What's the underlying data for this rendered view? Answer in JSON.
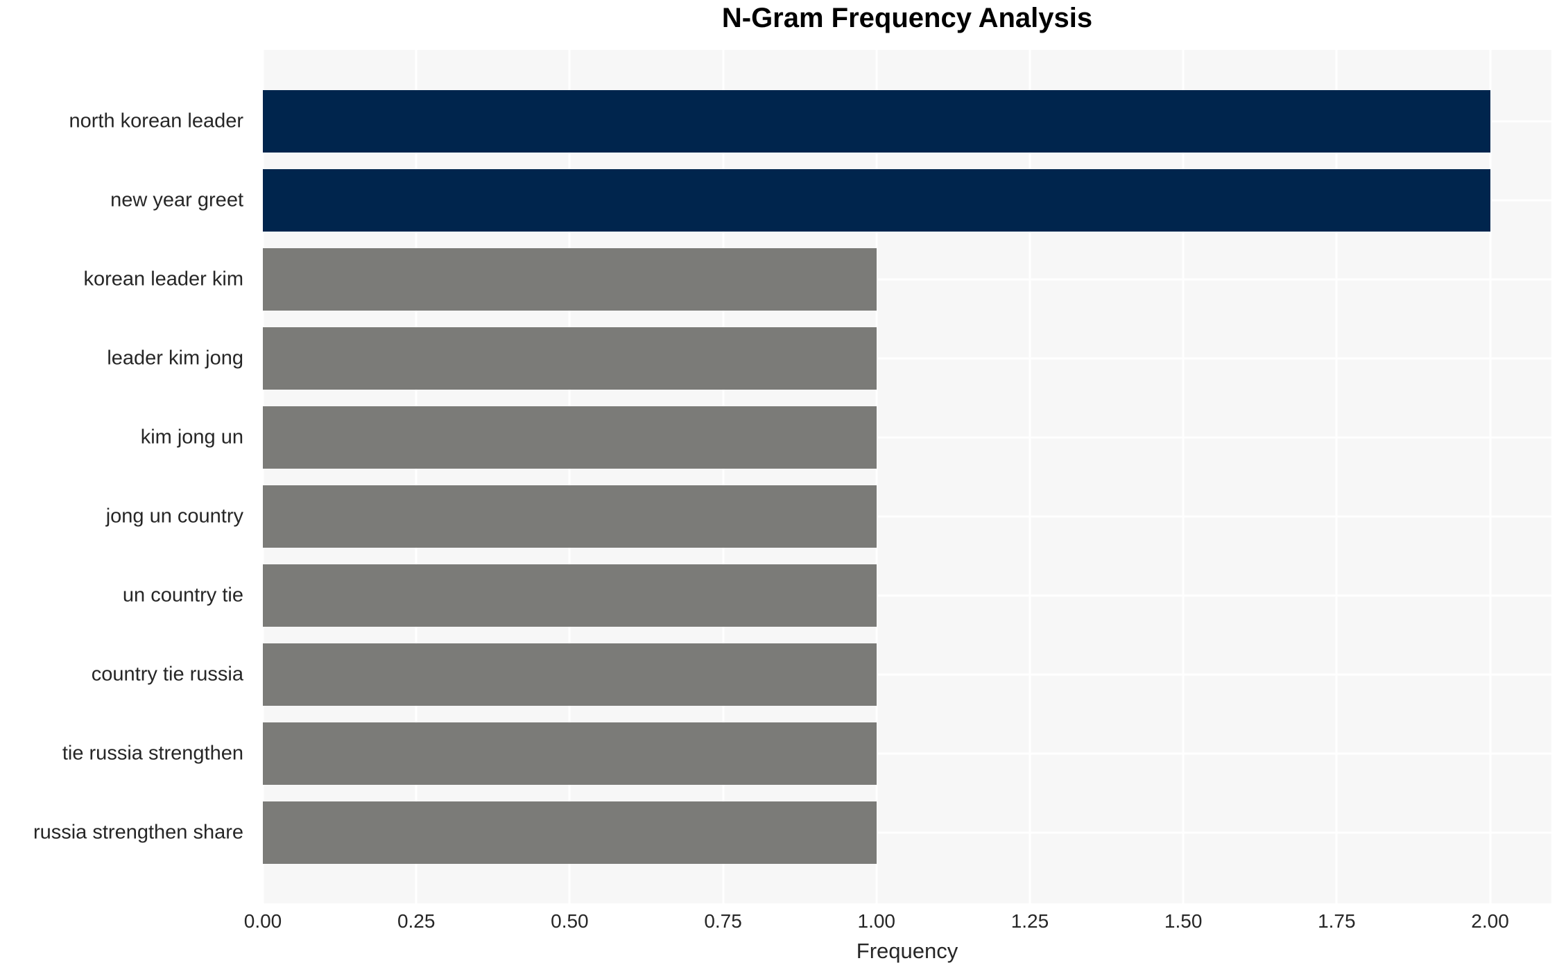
{
  "chart_data": {
    "type": "bar",
    "orientation": "horizontal",
    "title": "N-Gram Frequency Analysis",
    "xlabel": "Frequency",
    "ylabel": "",
    "categories": [
      "north korean leader",
      "new year greet",
      "korean leader kim",
      "leader kim jong",
      "kim jong un",
      "jong un country",
      "un country tie",
      "country tie russia",
      "tie russia strengthen",
      "russia strengthen share"
    ],
    "values": [
      2,
      2,
      1,
      1,
      1,
      1,
      1,
      1,
      1,
      1
    ],
    "bar_colors": [
      "#00254d",
      "#00254d",
      "#7b7b78",
      "#7b7b78",
      "#7b7b78",
      "#7b7b78",
      "#7b7b78",
      "#7b7b78",
      "#7b7b78",
      "#7b7b78"
    ],
    "xlim": [
      0,
      2.1
    ],
    "xticks": [
      0,
      0.25,
      0.5,
      0.75,
      1.0,
      1.25,
      1.5,
      1.75,
      2.0
    ],
    "xtick_labels": [
      "0.00",
      "0.25",
      "0.50",
      "0.75",
      "1.00",
      "1.25",
      "1.50",
      "1.75",
      "2.00"
    ],
    "grid": true,
    "legend": "none",
    "colors": {
      "highlight_bar": "#00254d",
      "default_bar": "#7b7b78",
      "plot_background": "#f7f7f7",
      "gridline": "#ffffff",
      "tick_text": "#262626",
      "title_text": "#000000"
    }
  }
}
